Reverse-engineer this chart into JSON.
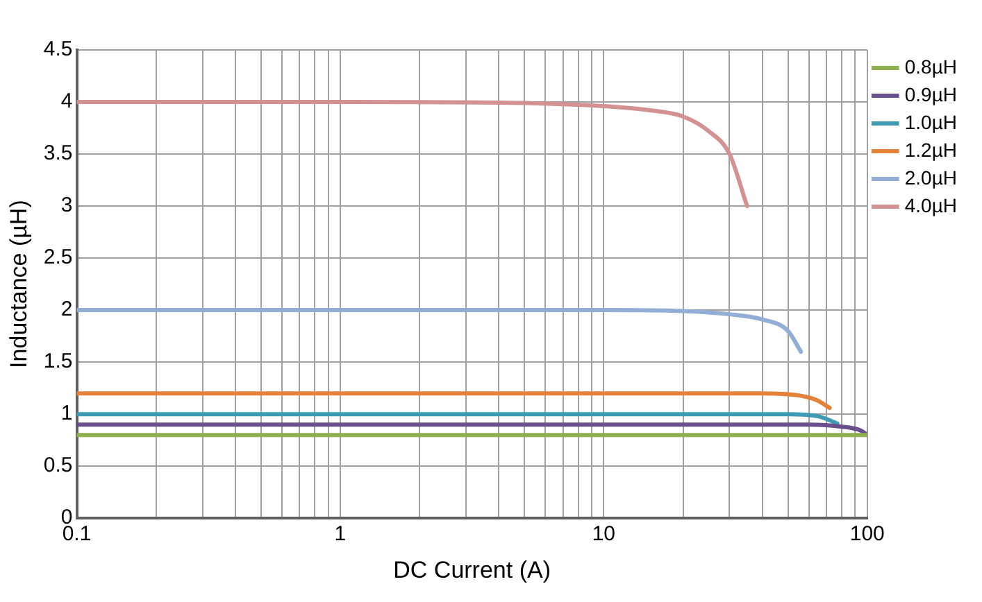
{
  "chart_data": {
    "type": "line",
    "xlabel": "DC Current (A)",
    "ylabel": "Inductance (µH)",
    "log": "x",
    "xlim": [
      0.1,
      100
    ],
    "ylim": [
      0,
      4.5
    ],
    "xticks": [
      0.1,
      {
        "value": 0.2,
        "label": null
      },
      {
        "value": 0.3,
        "label": null
      },
      {
        "value": 0.4,
        "label": null
      },
      {
        "value": 0.5,
        "label": null
      },
      {
        "value": 0.6,
        "label": null
      },
      {
        "value": 0.7,
        "label": null
      },
      {
        "value": 0.8,
        "label": null
      },
      {
        "value": 0.9,
        "label": null
      },
      1,
      {
        "value": 2,
        "label": null
      },
      {
        "value": 3,
        "label": null
      },
      {
        "value": 4,
        "label": null
      },
      {
        "value": 5,
        "label": null
      },
      {
        "value": 6,
        "label": null
      },
      {
        "value": 7,
        "label": null
      },
      {
        "value": 8,
        "label": null
      },
      {
        "value": 9,
        "label": null
      },
      10,
      {
        "value": 20,
        "label": null
      },
      {
        "value": 30,
        "label": null
      },
      {
        "value": 40,
        "label": null
      },
      {
        "value": 50,
        "label": null
      },
      {
        "value": 60,
        "label": null
      },
      {
        "value": 70,
        "label": null
      },
      {
        "value": 80,
        "label": null
      },
      {
        "value": 90,
        "label": null
      },
      100
    ],
    "yticks": [
      0,
      0.5,
      1,
      1.5,
      2,
      2.5,
      3,
      3.5,
      4,
      4.5
    ],
    "grid": true,
    "legend": "right",
    "marker": "none",
    "line_style": "solid",
    "series": [
      {
        "name": "0.8µH",
        "color": "#8eb04f",
        "x": [
          0.1,
          100
        ],
        "values": [
          0.8,
          0.8
        ]
      },
      {
        "name": "0.9µH",
        "color": "#6a4f8f",
        "x": [
          0.1,
          60,
          80,
          95,
          100
        ],
        "values": [
          0.9,
          0.9,
          0.88,
          0.84,
          0.8
        ]
      },
      {
        "name": "1.0µH",
        "color": "#3d9bb3",
        "x": [
          0.1,
          50,
          65,
          77
        ],
        "values": [
          1.0,
          1.0,
          0.98,
          0.91
        ]
      },
      {
        "name": "1.2µH",
        "color": "#e5823a",
        "x": [
          0.1,
          40,
          55,
          65,
          72
        ],
        "values": [
          1.2,
          1.2,
          1.18,
          1.13,
          1.06
        ]
      },
      {
        "name": "2.0µH",
        "color": "#93aed6",
        "x": [
          0.1,
          10,
          20,
          30,
          40,
          50,
          56
        ],
        "values": [
          2.0,
          2.0,
          1.99,
          1.96,
          1.91,
          1.8,
          1.6
        ]
      },
      {
        "name": "4.0µH",
        "color": "#d49191",
        "x": [
          0.1,
          1,
          5,
          10,
          15,
          20,
          25,
          30,
          35
        ],
        "values": [
          4.0,
          4.0,
          3.99,
          3.96,
          3.92,
          3.86,
          3.72,
          3.5,
          3.0
        ]
      }
    ]
  }
}
